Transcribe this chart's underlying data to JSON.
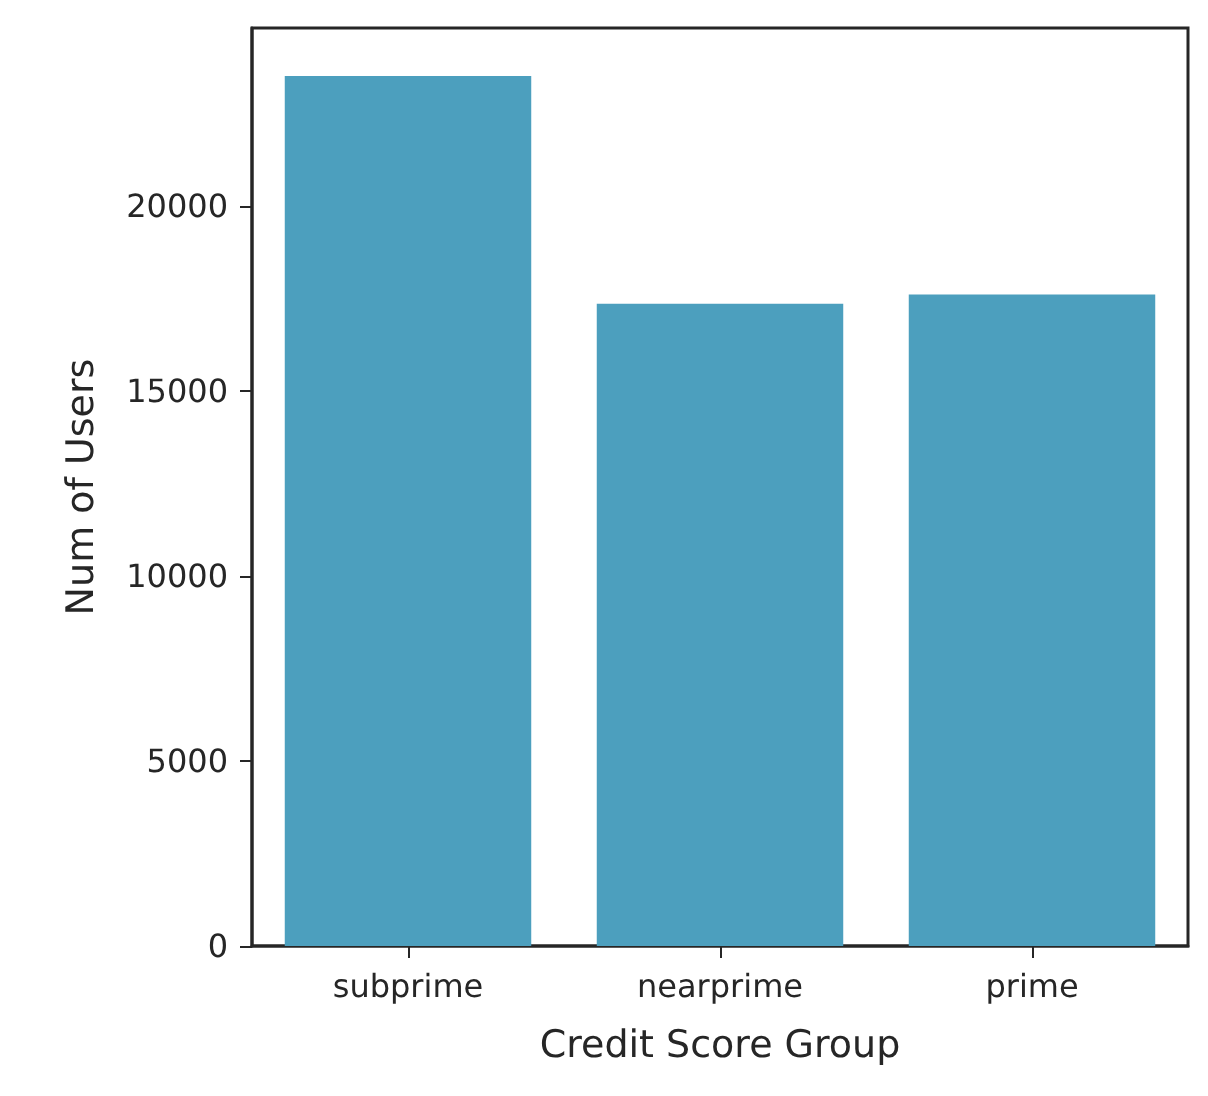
{
  "chart_data": {
    "type": "bar",
    "xlabel": "Credit Score Group",
    "ylabel": "Num of Users",
    "categories": [
      "subprime",
      "nearprime",
      "prime"
    ],
    "values": [
      23500,
      17350,
      17600
    ],
    "color": "#4c9fbe",
    "ylim": [
      0,
      24800
    ],
    "yticks": [
      0,
      5000,
      10000,
      15000,
      20000
    ],
    "grid": false
  }
}
